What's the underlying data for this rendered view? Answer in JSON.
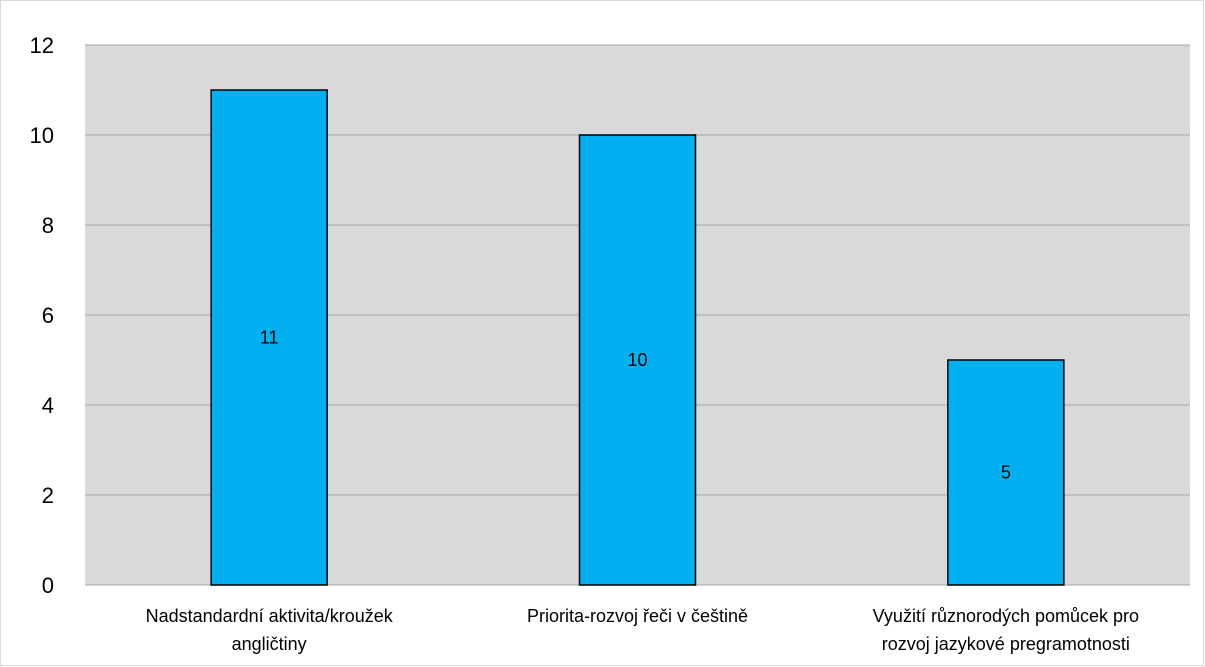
{
  "chart_data": {
    "type": "bar",
    "title": "",
    "xlabel": "",
    "ylabel": "",
    "categories": [
      [
        "Nadstandardní aktivita/kroužek",
        "angličtiny"
      ],
      [
        "Priorita-rozvoj řeči v češtině"
      ],
      [
        "Využití různorodých pomůcek pro",
        "rozvoj jazykové pregramotnosti"
      ]
    ],
    "values": [
      11,
      10,
      5
    ],
    "data_labels": [
      "11",
      "10",
      "5"
    ],
    "ylim": [
      0,
      12
    ],
    "yticks": [
      0,
      2,
      4,
      6,
      8,
      10,
      12
    ],
    "grid": true,
    "legend": "none",
    "colors": {
      "bar": "#00b0f0",
      "bar_edge": "#000000",
      "plot_bg": "#d9d9d9",
      "grid": "#a6a6a6"
    }
  }
}
